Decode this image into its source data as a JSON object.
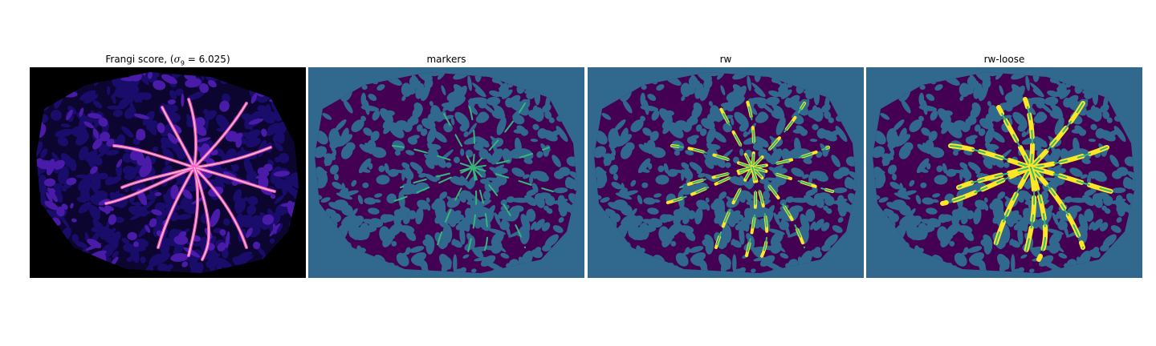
{
  "figure": {
    "panels": [
      {
        "title_prefix": "Frangi score, (",
        "title_sigma_symbol": "σ",
        "title_sigma_sub": "9",
        "title_suffix": " = 6.025)",
        "colormap": "magma",
        "background": "#000000",
        "tissue_color": "#1a0c6b",
        "vessel_color": "#ff4fd8",
        "vessel_highlight": "#ffe6b0"
      },
      {
        "title": "markers",
        "colormap": "viridis",
        "background": "#31688e",
        "tissue_color": "#440154",
        "marker_color": "#35b779"
      },
      {
        "title": "rw",
        "colormap": "viridis",
        "background": "#31688e",
        "tissue_color": "#440154",
        "marker_color": "#35b779",
        "segment_color": "#fde725"
      },
      {
        "title": "rw-loose",
        "colormap": "viridis",
        "background": "#31688e",
        "tissue_color": "#440154",
        "marker_color": "#35b779",
        "segment_color": "#fde725"
      }
    ]
  }
}
